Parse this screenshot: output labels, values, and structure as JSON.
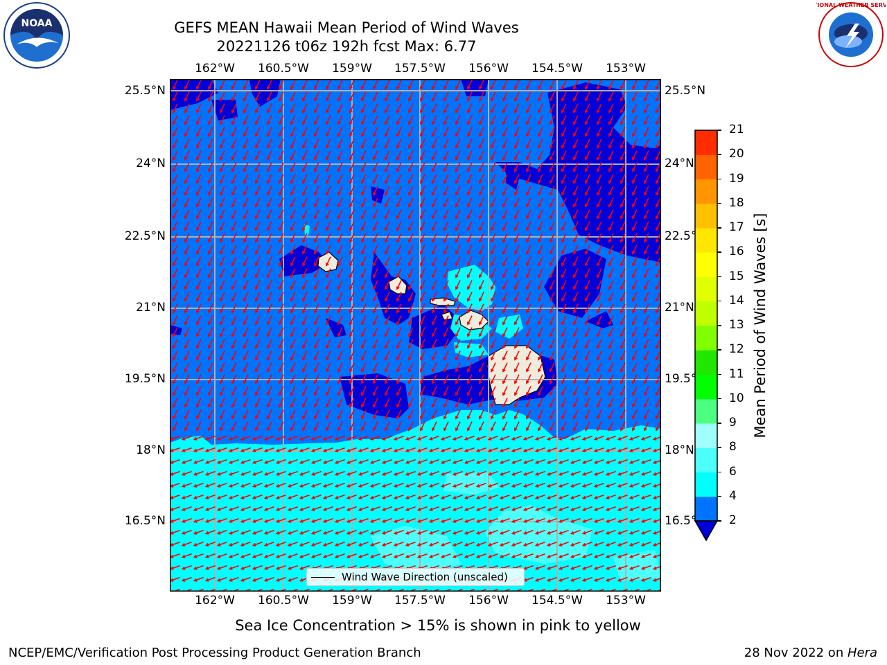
{
  "header": {
    "title_line1": "GEFS MEAN Hawaii Mean Period of Wind Waves",
    "title_line2": "20221126 t06z 192h fcst   Max: 6.77"
  },
  "logos": {
    "left": {
      "text": "NOAA",
      "icon": "noaa-logo-icon"
    },
    "right": {
      "text": "NATIONAL WEATHER SERVICE",
      "icon": "nws-logo-icon"
    }
  },
  "map": {
    "longitude_ticks": [
      "162°W",
      "160.5°W",
      "159°W",
      "157.5°W",
      "156°W",
      "154.5°W",
      "153°W"
    ],
    "latitude_ticks": [
      "25.5°N",
      "24°N",
      "22.5°N",
      "21°N",
      "19.5°N",
      "18°N",
      "16.5°N"
    ],
    "legend_label": "Wind Wave Direction (unscaled)",
    "colors": {
      "band_2_4": "#0073ff",
      "band_below_2": "#0000d8",
      "band_4_6": "#00ffff",
      "band_6_8": "#4dfffa",
      "land": "#eeecdc",
      "grid": "#b0b0b0",
      "arrows": "#ff0000"
    }
  },
  "colorbar": {
    "label": "Mean Period of Wind Waves [s]",
    "ticks": [
      "2",
      "4",
      "6",
      "8",
      "9",
      "10",
      "11",
      "12",
      "13",
      "14",
      "15",
      "16",
      "17",
      "18",
      "19",
      "20",
      "21"
    ],
    "colors": [
      "#0073ff",
      "#00ffff",
      "#4dfffa",
      "#a0fffa",
      "#4dff80",
      "#00ff00",
      "#20e600",
      "#80ff00",
      "#c0ff00",
      "#e0ff00",
      "#ffff00",
      "#ffe600",
      "#ffc000",
      "#ff9600",
      "#ff6400",
      "#ff2d00"
    ],
    "under_color": "#0000d8"
  },
  "notes": {
    "ice": "Sea Ice Concentration > 15% is shown in pink to yellow"
  },
  "footer": {
    "left": "NCEP/EMC/Verification Post Processing Product Generation Branch",
    "right_prefix": "28 Nov 2022 on ",
    "right_host": "Hera"
  }
}
